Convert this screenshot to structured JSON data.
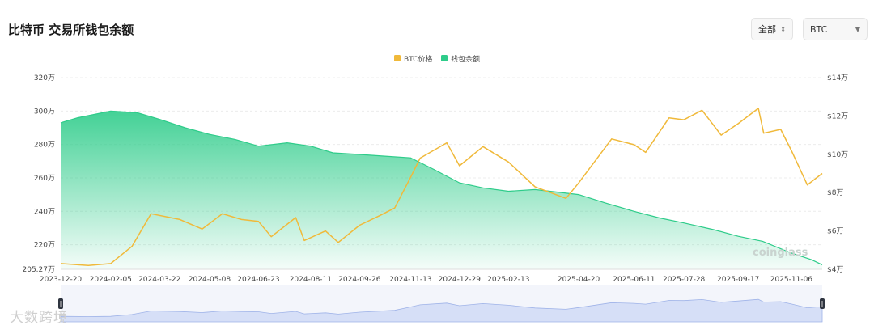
{
  "header": {
    "title": "比特币 交易所钱包余额"
  },
  "controls": {
    "range_select": {
      "value": "全部",
      "icon": "updown-chevron-icon"
    },
    "asset_select": {
      "value": "BTC",
      "icon": "caret-down-icon"
    }
  },
  "watermarks": {
    "bottom_left": "大数跨境",
    "chart": "coinglass"
  },
  "colors": {
    "price": "#f0b93a",
    "balance": "#2ecc8a",
    "navigator": "#c9d6f5"
  },
  "chart_data": {
    "type": "line",
    "legend_position": "top-center",
    "x_tick_labels": [
      "2023-12-20",
      "2024-02-05",
      "2024-03-22",
      "2024-05-08",
      "2024-06-23",
      "2024-08-11",
      "2024-09-26",
      "2024-11-13",
      "2024-12-29",
      "2025-02-13",
      "2025-04-20",
      "2025-06-11",
      "2025-07-28",
      "2025-09-17",
      "2025-11-06"
    ],
    "y_left": {
      "ticks": [
        "205.27万",
        "220万",
        "240万",
        "260万",
        "280万",
        "300万",
        "320万"
      ],
      "min": 205.27,
      "max": 320
    },
    "y_right": {
      "ticks": [
        "$4万",
        "$6万",
        "$8万",
        "$10万",
        "$12万",
        "$14万"
      ],
      "min": 4,
      "max": 14
    },
    "grid": true,
    "series": [
      {
        "name": "BTC价格",
        "axis": "right",
        "x": [
          "2023-12-20",
          "2024-01-15",
          "2024-02-05",
          "2024-02-25",
          "2024-03-14",
          "2024-04-10",
          "2024-05-01",
          "2024-05-20",
          "2024-06-07",
          "2024-06-23",
          "2024-07-05",
          "2024-07-28",
          "2024-08-05",
          "2024-08-25",
          "2024-09-06",
          "2024-09-26",
          "2024-10-15",
          "2024-10-29",
          "2024-11-13",
          "2024-11-22",
          "2024-12-17",
          "2024-12-29",
          "2025-01-20",
          "2025-02-13",
          "2025-03-10",
          "2025-04-08",
          "2025-04-20",
          "2025-05-21",
          "2025-06-11",
          "2025-06-22",
          "2025-07-14",
          "2025-07-28",
          "2025-08-14",
          "2025-09-01",
          "2025-09-17",
          "2025-10-06",
          "2025-10-11",
          "2025-10-27",
          "2025-11-06",
          "2025-11-21",
          "2025-12-05"
        ],
        "values": [
          4.3,
          4.2,
          4.3,
          5.2,
          6.9,
          6.6,
          6.1,
          6.9,
          6.6,
          6.5,
          5.7,
          6.7,
          5.5,
          6.0,
          5.4,
          6.3,
          6.8,
          7.2,
          8.8,
          9.8,
          10.6,
          9.4,
          10.4,
          9.6,
          8.3,
          7.7,
          8.5,
          10.8,
          10.5,
          10.1,
          11.9,
          11.8,
          12.3,
          11.0,
          11.6,
          12.4,
          11.1,
          11.3,
          10.2,
          8.4,
          9.0
        ]
      },
      {
        "name": "钱包余额",
        "axis": "left",
        "x": [
          "2023-12-20",
          "2024-01-05",
          "2024-02-05",
          "2024-03-01",
          "2024-03-22",
          "2024-04-15",
          "2024-05-08",
          "2024-06-01",
          "2024-06-23",
          "2024-07-20",
          "2024-08-11",
          "2024-09-01",
          "2024-09-26",
          "2024-10-20",
          "2024-11-13",
          "2024-12-05",
          "2024-12-29",
          "2025-01-20",
          "2025-02-13",
          "2025-03-10",
          "2025-04-20",
          "2025-05-15",
          "2025-06-11",
          "2025-07-05",
          "2025-07-28",
          "2025-08-25",
          "2025-09-17",
          "2025-10-10",
          "2025-11-06",
          "2025-11-25",
          "2025-12-05"
        ],
        "values": [
          293,
          296,
          300,
          299,
          295,
          290,
          286,
          283,
          279,
          281,
          279,
          275,
          274,
          273,
          272,
          265,
          257,
          254,
          252,
          253,
          250,
          245,
          240,
          236,
          233,
          229,
          225,
          222,
          215,
          211,
          208
        ]
      }
    ]
  }
}
